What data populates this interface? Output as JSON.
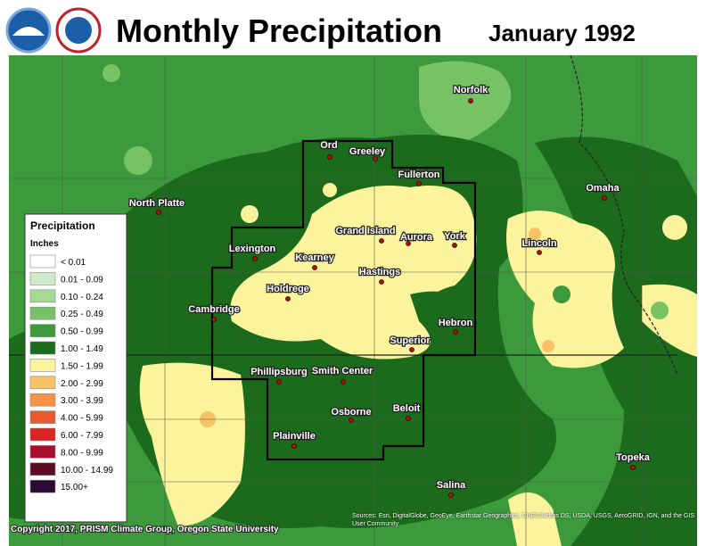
{
  "header": {
    "title": "Monthly Precipitation",
    "date": "January 1992"
  },
  "legend": {
    "title": "Precipitation",
    "units": "Inches",
    "items": [
      {
        "label": "< 0.01",
        "color": "#ffffff"
      },
      {
        "label": "0.01 - 0.09",
        "color": "#cfeac6"
      },
      {
        "label": "0.10 - 0.24",
        "color": "#a6d896"
      },
      {
        "label": "0.25 - 0.49",
        "color": "#78c266"
      },
      {
        "label": "0.50 - 0.99",
        "color": "#3c9a3c"
      },
      {
        "label": "1.00 - 1.49",
        "color": "#1c6b1c"
      },
      {
        "label": "1.50 - 1.99",
        "color": "#fbf49c"
      },
      {
        "label": "2.00 - 2.99",
        "color": "#f6c366"
      },
      {
        "label": "3.00 - 3.99",
        "color": "#f39348"
      },
      {
        "label": "4.00 - 5.99",
        "color": "#ea5a2c"
      },
      {
        "label": "6.00 - 7.99",
        "color": "#d92424"
      },
      {
        "label": "8.00 - 9.99",
        "color": "#a80d2e"
      },
      {
        "label": "10.00 - 14.99",
        "color": "#5c0a20"
      },
      {
        "label": "15.00+",
        "color": "#2b0a38"
      }
    ]
  },
  "cities": [
    "North Platte",
    "Ord",
    "Greeley",
    "Fullerton",
    "Norfolk",
    "Omaha",
    "Grand Island",
    "Aurora",
    "York",
    "Lincoln",
    "Lexington",
    "Kearney",
    "Hastings",
    "Holdrege",
    "Cambridge",
    "Hebron",
    "Superior",
    "Phillipsburg",
    "Smith Center",
    "Osborne",
    "Beloit",
    "Plainville",
    "Topeka",
    "Salina"
  ],
  "credits": {
    "copyright": "Copyright 2017, PRISM Climate Group, Oregon State University",
    "source": "Sources: Esri, DigitalGlobe, GeoEye, Earthstar Geographics, CNES/Airbus DS, USDA, USGS, AeroGRID, IGN, and the GIS User Community"
  }
}
